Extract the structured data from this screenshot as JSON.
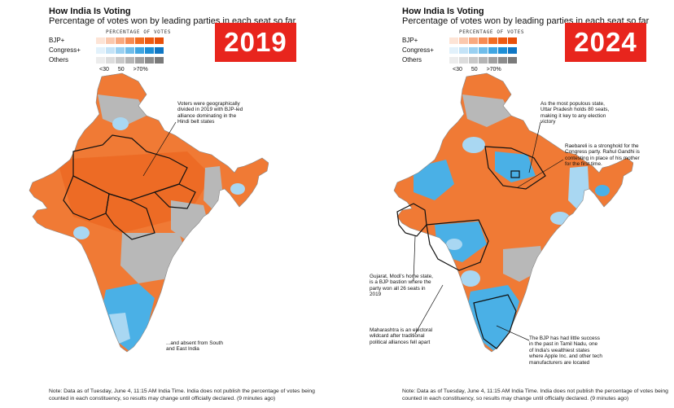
{
  "legend": {
    "header": "PERCENTAGE OF VOTES",
    "rows": [
      {
        "label": "BJP+",
        "colors": [
          "#fde4d6",
          "#fbc8ad",
          "#f9a97f",
          "#f78b52",
          "#f26d22",
          "#ee5a11",
          "#e8500a"
        ]
      },
      {
        "label": "Congress+",
        "colors": [
          "#e2f1fb",
          "#c4e3f7",
          "#99d0f1",
          "#6fbdea",
          "#3fa6e2",
          "#1d8fd6",
          "#1077c4"
        ]
      },
      {
        "label": "Others",
        "colors": [
          "#ececec",
          "#dcdcdc",
          "#c8c8c8",
          "#b4b4b4",
          "#a0a0a0",
          "#8c8c8c",
          "#7a7a7a"
        ]
      }
    ],
    "ticks": [
      "<30",
      "50",
      ">70%"
    ]
  },
  "colors": {
    "bjp": "#f07a35",
    "bjp_dark": "#e8500a",
    "congress": "#4ab0e6",
    "congress_light": "#a9d7f2",
    "others": "#b8b8b8",
    "badge": "#e8251d",
    "disputed": "#e4e4e4"
  },
  "panels": [
    {
      "title": "How India Is Voting",
      "subtitle": "Percentage of votes won by leading parties in each seat so far",
      "year": "2019",
      "annotations": [
        "Voters were geographically divided in 2019 with BJP-led alliance dominating in the Hindi belt states",
        "...and absent from South and East India"
      ],
      "note": "Note: Data as of Tuesday, June 4, 11:15 AM India Time. India does not publish the percentage of votes being counted in each constituency, so results may change until officially declared. (9 minutes ago)"
    },
    {
      "title": "How India Is Voting",
      "subtitle": "Percentage of votes won by leading parties in each seat so far",
      "year": "2024",
      "annotations": [
        "As the most populous state, Uttar Pradesh holds 80 seats, making it key to any election victory",
        "Raebareli is a stronghold for the Congress party. Rahul Gandhi is contesting in place of his mother for the first time.",
        "Gujarat, Modi's home state, is a BJP bastion where the party won all 26 seats in 2019",
        "Maharashtra is an electoral wildcard after traditional political alliances fell apart",
        "The BJP has had little success in the past in Tamil Nadu, one of India's wealthiest states where Apple Inc. and other tech manufacturers are located"
      ],
      "note": "Note: Data as of Tuesday, June 4, 11:15 AM India Time. India does not publish the percentage of votes being counted in each constituency, so results may change until officially declared. (9 minutes ago)"
    }
  ]
}
